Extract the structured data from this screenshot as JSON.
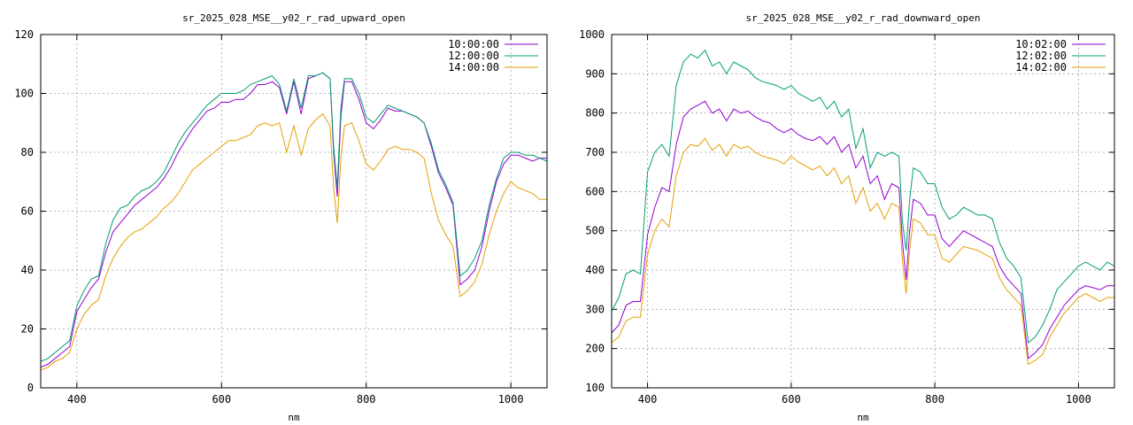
{
  "chart_data": [
    {
      "type": "line",
      "title": "sr_2025_028_MSE__y02_r_rad_upward_open",
      "xlabel": "nm",
      "ylabel": "",
      "xlim": [
        350,
        1050
      ],
      "ylim": [
        0,
        120
      ],
      "xticks": [
        400,
        600,
        800,
        1000
      ],
      "yticks": [
        0,
        20,
        40,
        60,
        80,
        100,
        120
      ],
      "grid": true,
      "legend_position": "top-right",
      "series": [
        {
          "name": "10:00:00",
          "color": "#9400d3",
          "x": [
            350,
            360,
            370,
            380,
            390,
            400,
            410,
            420,
            430,
            440,
            450,
            460,
            470,
            480,
            490,
            500,
            510,
            520,
            530,
            540,
            550,
            560,
            570,
            580,
            590,
            600,
            610,
            620,
            630,
            640,
            650,
            660,
            670,
            680,
            690,
            700,
            710,
            720,
            730,
            740,
            750,
            755,
            760,
            765,
            770,
            780,
            790,
            800,
            810,
            820,
            830,
            840,
            850,
            860,
            870,
            880,
            890,
            900,
            910,
            920,
            930,
            940,
            950,
            960,
            970,
            980,
            990,
            1000,
            1010,
            1020,
            1030,
            1040,
            1050
          ],
          "y": [
            7,
            8,
            10,
            12,
            14,
            26,
            30,
            34,
            37,
            46,
            53,
            56,
            59,
            62,
            64,
            66,
            68,
            71,
            75,
            80,
            84,
            88,
            91,
            94,
            95,
            97,
            97,
            98,
            98,
            100,
            103,
            103,
            104,
            102,
            93,
            104,
            93,
            105,
            106,
            107,
            105,
            80,
            65,
            92,
            104,
            104,
            98,
            90,
            88,
            91,
            95,
            94,
            94,
            93,
            92,
            90,
            82,
            73,
            68,
            62,
            35,
            37,
            40,
            48,
            60,
            70,
            76,
            79,
            79,
            78,
            77,
            78,
            78
          ]
        },
        {
          "name": "12:00:00",
          "color": "#009e73",
          "x": [
            350,
            360,
            370,
            380,
            390,
            400,
            410,
            420,
            430,
            440,
            450,
            460,
            470,
            480,
            490,
            500,
            510,
            520,
            530,
            540,
            550,
            560,
            570,
            580,
            590,
            600,
            610,
            620,
            630,
            640,
            650,
            660,
            670,
            680,
            690,
            700,
            710,
            720,
            730,
            740,
            750,
            755,
            760,
            765,
            770,
            780,
            790,
            800,
            810,
            820,
            830,
            840,
            850,
            860,
            870,
            880,
            890,
            900,
            910,
            920,
            930,
            940,
            950,
            960,
            970,
            980,
            990,
            1000,
            1010,
            1020,
            1030,
            1040,
            1050
          ],
          "y": [
            9,
            10,
            12,
            14,
            16,
            28,
            33,
            37,
            38,
            49,
            57,
            61,
            62,
            65,
            67,
            68,
            70,
            73,
            78,
            83,
            87,
            90,
            93,
            96,
            98,
            100,
            100,
            100,
            101,
            103,
            104,
            105,
            106,
            103,
            94,
            105,
            95,
            106,
            106,
            107,
            105,
            82,
            68,
            95,
            105,
            105,
            100,
            92,
            90,
            93,
            96,
            95,
            94,
            93,
            92,
            90,
            83,
            74,
            69,
            63,
            38,
            40,
            44,
            50,
            62,
            71,
            78,
            80,
            80,
            79,
            79,
            78,
            77
          ]
        },
        {
          "name": "14:00:00",
          "color": "#e69f00",
          "x": [
            350,
            360,
            370,
            380,
            390,
            400,
            410,
            420,
            430,
            440,
            450,
            460,
            470,
            480,
            490,
            500,
            510,
            520,
            530,
            540,
            550,
            560,
            570,
            580,
            590,
            600,
            610,
            620,
            630,
            640,
            650,
            660,
            670,
            680,
            690,
            700,
            710,
            720,
            730,
            740,
            750,
            755,
            760,
            765,
            770,
            780,
            790,
            800,
            810,
            820,
            830,
            840,
            850,
            860,
            870,
            880,
            890,
            900,
            910,
            920,
            930,
            940,
            950,
            960,
            970,
            980,
            990,
            1000,
            1010,
            1020,
            1030,
            1040,
            1050
          ],
          "y": [
            6,
            7,
            9,
            10,
            12,
            20,
            25,
            28,
            30,
            38,
            44,
            48,
            51,
            53,
            54,
            56,
            58,
            61,
            63,
            66,
            70,
            74,
            76,
            78,
            80,
            82,
            84,
            84,
            85,
            86,
            89,
            90,
            89,
            90,
            80,
            89,
            79,
            88,
            91,
            93,
            89,
            68,
            56,
            78,
            89,
            90,
            84,
            76,
            74,
            77,
            81,
            82,
            81,
            81,
            80,
            78,
            66,
            57,
            52,
            48,
            31,
            33,
            36,
            42,
            52,
            60,
            66,
            70,
            68,
            67,
            66,
            64,
            64
          ]
        }
      ]
    },
    {
      "type": "line",
      "title": "sr_2025_028_MSE__y02_r_rad_downward_open",
      "xlabel": "nm",
      "ylabel": "",
      "xlim": [
        350,
        1050
      ],
      "ylim": [
        100,
        1000
      ],
      "xticks": [
        400,
        600,
        800,
        1000
      ],
      "yticks": [
        100,
        200,
        300,
        400,
        500,
        600,
        700,
        800,
        900,
        1000
      ],
      "grid": true,
      "legend_position": "top-right",
      "series": [
        {
          "name": "10:02:00",
          "color": "#9400d3",
          "x": [
            350,
            360,
            370,
            380,
            390,
            400,
            410,
            420,
            430,
            440,
            450,
            460,
            470,
            480,
            490,
            500,
            510,
            520,
            530,
            540,
            550,
            560,
            570,
            580,
            590,
            600,
            610,
            620,
            630,
            640,
            650,
            660,
            670,
            680,
            690,
            700,
            710,
            720,
            730,
            740,
            750,
            755,
            760,
            765,
            770,
            780,
            790,
            800,
            810,
            820,
            830,
            840,
            850,
            860,
            870,
            880,
            890,
            900,
            910,
            920,
            930,
            940,
            950,
            960,
            970,
            980,
            990,
            1000,
            1010,
            1020,
            1030,
            1040,
            1050
          ],
          "y": [
            240,
            260,
            310,
            320,
            320,
            490,
            560,
            610,
            600,
            720,
            790,
            810,
            820,
            830,
            800,
            810,
            780,
            810,
            800,
            805,
            790,
            780,
            775,
            760,
            750,
            760,
            745,
            735,
            730,
            740,
            720,
            740,
            700,
            720,
            660,
            690,
            620,
            640,
            580,
            620,
            610,
            470,
            375,
            500,
            580,
            570,
            540,
            540,
            480,
            460,
            480,
            500,
            490,
            480,
            470,
            460,
            410,
            380,
            360,
            340,
            175,
            190,
            210,
            250,
            280,
            310,
            330,
            350,
            360,
            355,
            350,
            360,
            360
          ]
        },
        {
          "name": "12:02:00",
          "color": "#009e73",
          "x": [
            350,
            360,
            370,
            380,
            390,
            400,
            410,
            420,
            430,
            440,
            450,
            460,
            470,
            480,
            490,
            500,
            510,
            520,
            530,
            540,
            550,
            560,
            570,
            580,
            590,
            600,
            610,
            620,
            630,
            640,
            650,
            660,
            670,
            680,
            690,
            700,
            710,
            720,
            730,
            740,
            750,
            755,
            760,
            765,
            770,
            780,
            790,
            800,
            810,
            820,
            830,
            840,
            850,
            860,
            870,
            880,
            890,
            900,
            910,
            920,
            930,
            940,
            950,
            960,
            970,
            980,
            990,
            1000,
            1010,
            1020,
            1030,
            1040,
            1050
          ],
          "y": [
            295,
            330,
            390,
            400,
            390,
            650,
            700,
            720,
            690,
            870,
            930,
            950,
            940,
            960,
            920,
            930,
            900,
            930,
            920,
            910,
            890,
            880,
            875,
            870,
            860,
            870,
            850,
            840,
            830,
            840,
            810,
            830,
            790,
            810,
            710,
            760,
            660,
            700,
            690,
            700,
            690,
            520,
            450,
            580,
            660,
            650,
            620,
            620,
            560,
            530,
            540,
            560,
            550,
            540,
            540,
            530,
            470,
            430,
            410,
            380,
            215,
            230,
            260,
            300,
            350,
            370,
            390,
            410,
            420,
            410,
            400,
            420,
            410
          ]
        },
        {
          "name": "14:02:00",
          "color": "#e69f00",
          "x": [
            350,
            360,
            370,
            380,
            390,
            400,
            410,
            420,
            430,
            440,
            450,
            460,
            470,
            480,
            490,
            500,
            510,
            520,
            530,
            540,
            550,
            560,
            570,
            580,
            590,
            600,
            610,
            620,
            630,
            640,
            650,
            660,
            670,
            680,
            690,
            700,
            710,
            720,
            730,
            740,
            750,
            755,
            760,
            765,
            770,
            780,
            790,
            800,
            810,
            820,
            830,
            840,
            850,
            860,
            870,
            880,
            890,
            900,
            910,
            920,
            930,
            940,
            950,
            960,
            970,
            980,
            990,
            1000,
            1010,
            1020,
            1030,
            1040,
            1050
          ],
          "y": [
            215,
            230,
            270,
            280,
            280,
            440,
            500,
            530,
            510,
            640,
            700,
            720,
            715,
            735,
            705,
            720,
            690,
            720,
            710,
            715,
            700,
            690,
            685,
            680,
            670,
            690,
            675,
            665,
            655,
            665,
            640,
            660,
            620,
            640,
            570,
            610,
            550,
            570,
            530,
            570,
            560,
            420,
            340,
            450,
            530,
            520,
            490,
            490,
            430,
            420,
            440,
            460,
            455,
            450,
            440,
            430,
            380,
            350,
            330,
            310,
            160,
            170,
            185,
            230,
            260,
            290,
            310,
            330,
            340,
            330,
            320,
            330,
            330
          ]
        }
      ]
    }
  ]
}
